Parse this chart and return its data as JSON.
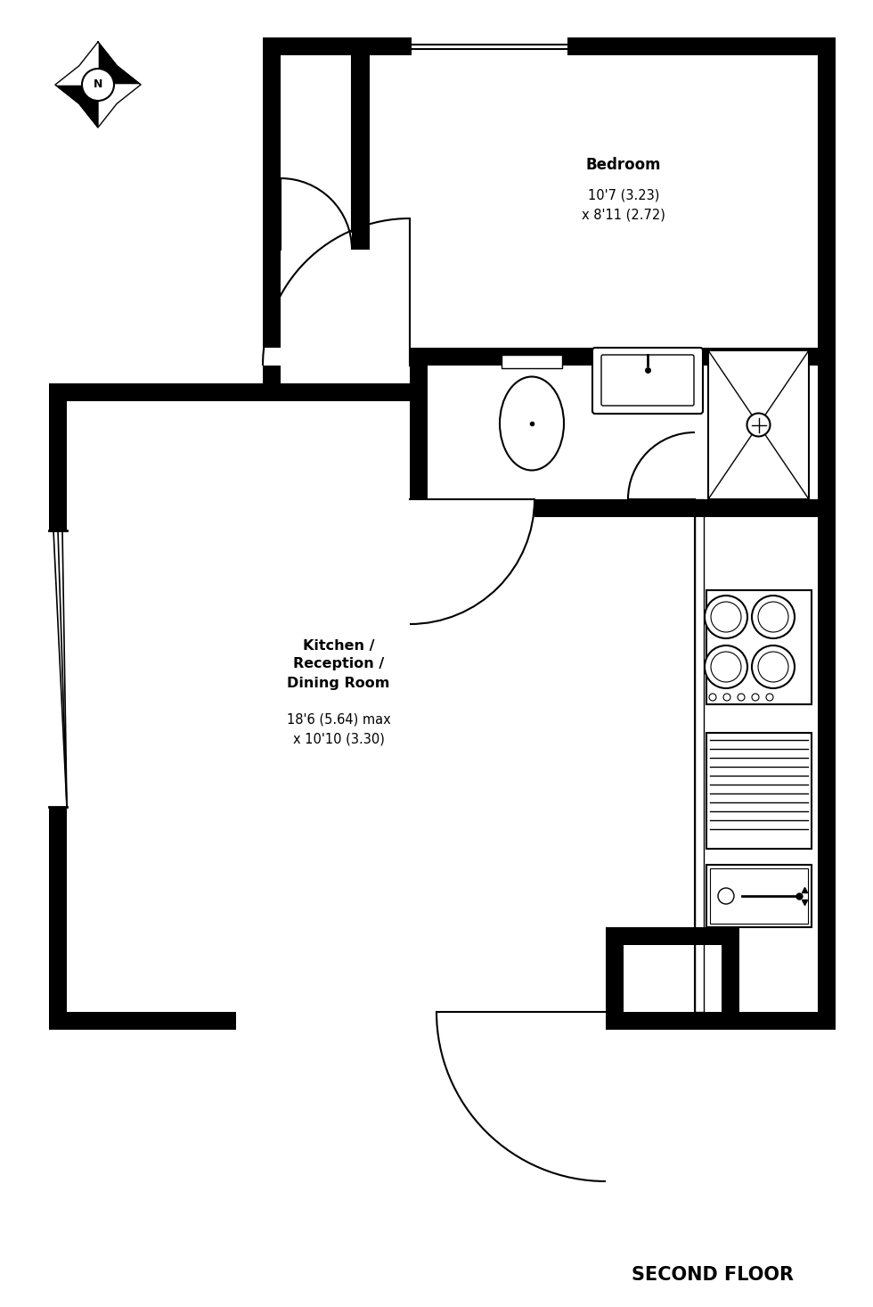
{
  "bg_color": "#ffffff",
  "wall_color": "#000000",
  "title": "SECOND FLOOR",
  "bedroom_label_bold": "Bedroom",
  "bedroom_label_normal": "10'7 (3.23)\nx 8'11 (2.72)",
  "kitchen_label_bold": "Kitchen /\nReception /\nDining Room",
  "kitchen_label_normal": "18'6 (5.64) max\nx 10'10 (3.30)"
}
